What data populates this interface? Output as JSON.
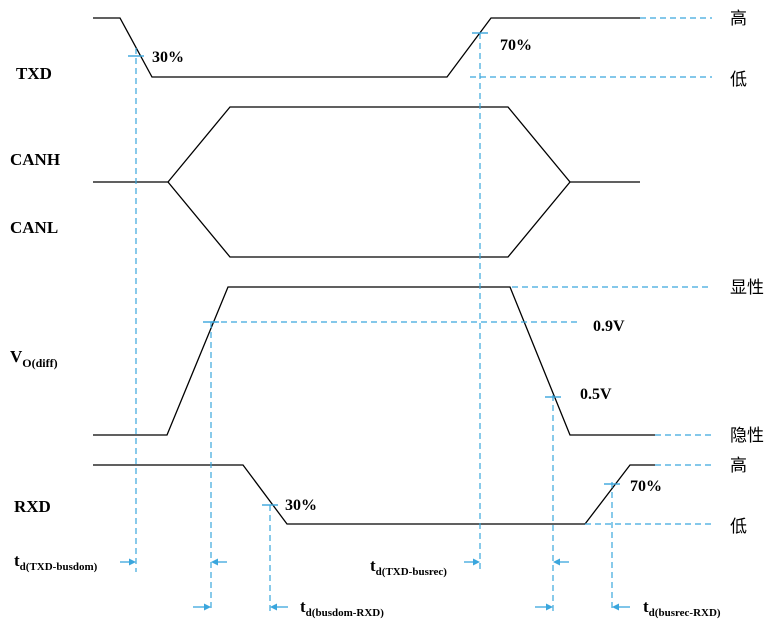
{
  "signals": {
    "txd": "TXD",
    "canh": "CANH",
    "canl": "CANL",
    "vo_main": "V",
    "vo_sub": "O(diff)",
    "rxd": "RXD"
  },
  "levels": {
    "txd_high": "高",
    "txd_low": "低",
    "dominant": "显性",
    "recessive": "隐性",
    "rxd_high": "高",
    "rxd_low": "低"
  },
  "thresholds": {
    "txd_fall": "30%",
    "txd_rise": "70%",
    "vo_high": "0.9V",
    "vo_low": "0.5V",
    "rxd_fall": "30%",
    "rxd_rise": "70%"
  },
  "timings": {
    "txd_busdom": {
      "main": "t",
      "sub": "d(TXD-busdom)"
    },
    "txd_busrec": {
      "main": "t",
      "sub": "d(TXD-busrec)"
    },
    "busdom_rxd": {
      "main": "t",
      "sub": "d(busdom-RXD)"
    },
    "busrec_rxd": {
      "main": "t",
      "sub": "d(busrec-RXD)"
    }
  },
  "colors": {
    "signal": "#000000",
    "reference": "#3aa6dd"
  }
}
